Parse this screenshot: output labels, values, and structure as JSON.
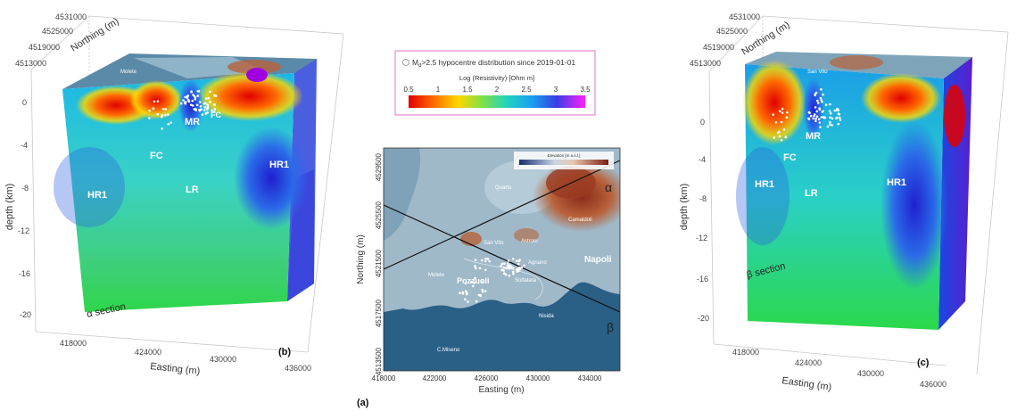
{
  "panel_b": {
    "northing_ticks": [
      "4531000",
      "4525000",
      "4519000",
      "4513000"
    ],
    "northing_label": "Northing (m)",
    "depth_ticks": [
      "0",
      "-4",
      "-8",
      "-12",
      "-16",
      "-20"
    ],
    "depth_label": "depth (km)",
    "easting_ticks": [
      "418000",
      "424000",
      "430000",
      "436000"
    ],
    "easting_label": "Easting (m)",
    "labels": {
      "mr": "MR",
      "fc_top": "FC",
      "fc_mid": "FC",
      "hr1_left": "HR1",
      "lr": "LR",
      "hr1_right": "HR1",
      "place": "Molete"
    },
    "section": "α section",
    "tag": "(b)"
  },
  "panel_c": {
    "northing_ticks": [
      "4531000",
      "4525000",
      "4519000",
      "4513000"
    ],
    "northing_label": "Northing (m)",
    "depth_ticks": [
      "0",
      "-4",
      "-8",
      "-12",
      "-16",
      "-20"
    ],
    "depth_label": "depth (km)",
    "easting_ticks": [
      "418000",
      "424000",
      "430000",
      "436000"
    ],
    "easting_label": "Easting (m)",
    "labels": {
      "mr": "MR",
      "fc": "FC",
      "hr1_left": "HR1",
      "lr": "LR",
      "hr1_right": "HR1",
      "place": "San Vito"
    },
    "section": "β section",
    "tag": "(c)"
  },
  "legend": {
    "hypocentre_text": "M",
    "hypocentre_sub": "d",
    "hypocentre_rest": ">2.5 hypocentre distribution since 2019-01-01",
    "scale_title": "Log (Resistivity) [Ohm m]",
    "scale_ticks": [
      "0.5",
      "1",
      "1.5",
      "2",
      "2.5",
      "3",
      "3.5"
    ]
  },
  "panel_a": {
    "tag": "(a)",
    "xlabel": "Easting (m)",
    "ylabel": "Northing (m)",
    "x_ticks": [
      "418000",
      "422000",
      "426000",
      "430000",
      "434000"
    ],
    "y_ticks": [
      "4529500",
      "4525500",
      "4521500",
      "4517500",
      "4513500"
    ],
    "elevation_title": "Elevation [m a.s.l.]",
    "alpha": "α",
    "beta": "β",
    "places": {
      "quarto": "Quarto",
      "camaldoli": "Camaldoli",
      "napoli": "Napoli",
      "pozzuoli": "Pozzuoli",
      "molete": "Molete",
      "agnano": "Agnano",
      "astroni": "Astroni",
      "sanvito": "San Vito",
      "solfatara": "Solfatara",
      "nisida": "Nisida",
      "cmiseno": "C.Miseno"
    }
  },
  "colors": {
    "resistivity_scale": [
      "#e00000",
      "#ff7a00",
      "#ffe000",
      "#6fdc3c",
      "#1fd0c8",
      "#1aa0f0",
      "#2040e8",
      "#9000d8",
      "#ff00ff"
    ],
    "sea": "#2a5f86",
    "land": "#a3bccb",
    "relief": "#b0582e"
  }
}
